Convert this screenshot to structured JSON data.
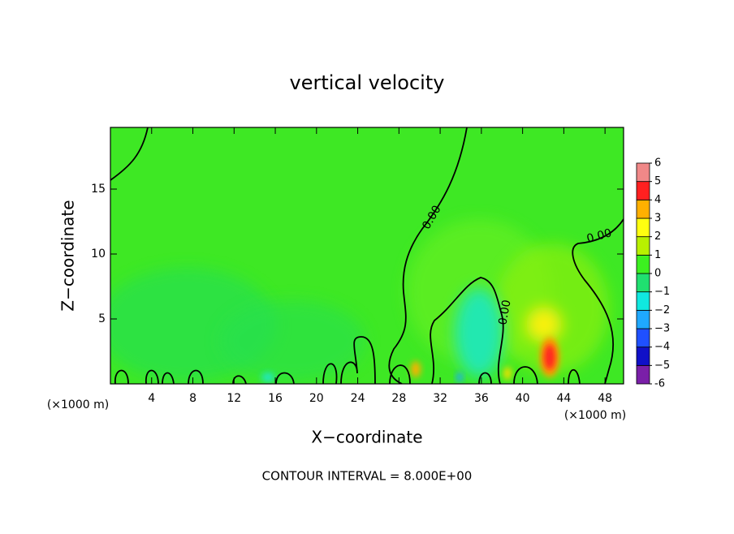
{
  "chart_data": {
    "type": "contour",
    "title": "vertical velocity",
    "xlabel": "X−coordinate",
    "ylabel": "Z−coordinate",
    "x_unit_label": "(×1000 m)",
    "x_unit_label_right": "(×1000 m)",
    "footer": "CONTOUR INTERVAL = 8.000E+00",
    "xlim": [
      0,
      49.8
    ],
    "ylim": [
      0,
      19.75
    ],
    "xticks": [
      4,
      8,
      12,
      16,
      20,
      24,
      28,
      32,
      36,
      40,
      44,
      48
    ],
    "yticks": [
      5,
      10,
      15
    ],
    "contour_labels": [
      {
        "value": 0,
        "label": "0.00"
      },
      {
        "value": 0,
        "label": "0.00"
      },
      {
        "value": 0,
        "label": "0.00"
      }
    ],
    "colorbar": {
      "lim": [
        -6,
        6
      ],
      "ticks": [
        -6,
        {
          "value": -5,
          "label": "−5"
        },
        {
          "value": -4,
          "label": "−4"
        },
        {
          "value": -3,
          "label": "−3"
        },
        {
          "value": -2,
          "label": "−2"
        },
        {
          "value": -1,
          "label": "−1"
        },
        0,
        1,
        2,
        3,
        4,
        5,
        6
      ],
      "colors": [
        "#7a1fa8",
        "#1010c8",
        "#1f50ff",
        "#1fa8ff",
        "#10e8e0",
        "#20e070",
        "#3cf020",
        "#b8f000",
        "#ffff10",
        "#ffb000",
        "#ff2020",
        "#f08888"
      ]
    }
  }
}
